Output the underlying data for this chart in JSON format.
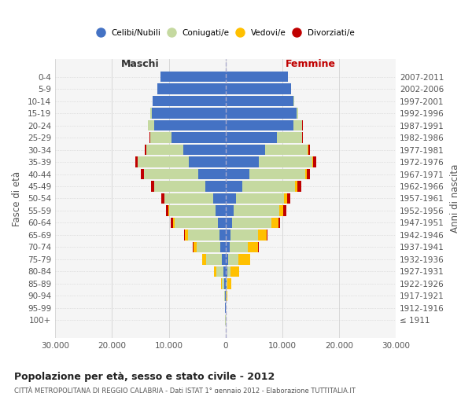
{
  "age_groups": [
    "100+",
    "95-99",
    "90-94",
    "85-89",
    "80-84",
    "75-79",
    "70-74",
    "65-69",
    "60-64",
    "55-59",
    "50-54",
    "45-49",
    "40-44",
    "35-39",
    "30-34",
    "25-29",
    "20-24",
    "15-19",
    "10-14",
    "5-9",
    "0-4"
  ],
  "birth_years": [
    "≤ 1911",
    "1912-1916",
    "1917-1921",
    "1922-1926",
    "1927-1931",
    "1932-1936",
    "1937-1941",
    "1942-1946",
    "1947-1951",
    "1952-1956",
    "1957-1961",
    "1962-1966",
    "1967-1971",
    "1972-1976",
    "1977-1981",
    "1982-1986",
    "1987-1991",
    "1992-1996",
    "1997-2001",
    "2002-2006",
    "2007-2011"
  ],
  "males_celibi": [
    30,
    60,
    120,
    200,
    380,
    600,
    900,
    1100,
    1400,
    1700,
    2200,
    3500,
    4800,
    6500,
    7500,
    9500,
    12500,
    13000,
    12800,
    12000,
    11500
  ],
  "males_coniugati": [
    10,
    30,
    80,
    400,
    1200,
    2800,
    4200,
    5500,
    7500,
    8200,
    8500,
    9000,
    9500,
    9000,
    6500,
    3800,
    1200,
    200,
    50,
    20,
    10
  ],
  "males_vedovi": [
    5,
    8,
    20,
    150,
    500,
    700,
    600,
    500,
    400,
    200,
    100,
    80,
    50,
    30,
    15,
    5,
    5,
    5,
    0,
    0,
    0
  ],
  "males_divorziati": [
    0,
    0,
    2,
    5,
    15,
    50,
    120,
    200,
    350,
    450,
    500,
    600,
    500,
    350,
    200,
    80,
    20,
    5,
    0,
    0,
    0
  ],
  "females_celibi": [
    25,
    50,
    100,
    170,
    300,
    480,
    700,
    900,
    1100,
    1400,
    1800,
    3000,
    4200,
    5800,
    7000,
    9000,
    12000,
    12500,
    12000,
    11500,
    11000
  ],
  "females_coniugati": [
    5,
    20,
    50,
    200,
    600,
    1800,
    3200,
    4800,
    7000,
    8000,
    8500,
    9200,
    9800,
    9500,
    7500,
    4500,
    1500,
    250,
    60,
    20,
    10
  ],
  "females_vedovi": [
    10,
    30,
    120,
    600,
    1500,
    2000,
    1800,
    1500,
    1200,
    800,
    500,
    400,
    250,
    150,
    80,
    30,
    10,
    5,
    0,
    0,
    0
  ],
  "females_divorziati": [
    0,
    0,
    3,
    8,
    15,
    50,
    120,
    200,
    350,
    500,
    600,
    700,
    600,
    450,
    250,
    100,
    25,
    5,
    0,
    0,
    0
  ],
  "colors": {
    "celibi": "#4472C4",
    "coniugati": "#c5d9a0",
    "vedovi": "#ffc000",
    "divorziati": "#c00000"
  },
  "legend_labels": [
    "Celibi/Nubili",
    "Coniugati/e",
    "Vedovi/e",
    "Divorziati/e"
  ],
  "title": "Popolazione per età, sesso e stato civile - 2012",
  "subtitle": "CITTÀ METROPOLITANA DI REGGIO CALABRIA - Dati ISTAT 1° gennaio 2012 - Elaborazione TUTTITALIA.IT",
  "ylabel": "Fasce di età",
  "ylabel_right": "Anni di nascita",
  "xlabel_left": "Maschi",
  "xlabel_right": "Femmine",
  "xlim": 30000,
  "xticks": [
    -30000,
    -20000,
    -10000,
    0,
    10000,
    20000,
    30000
  ],
  "xticklabels": [
    "30.000",
    "20.000",
    "10.000",
    "0",
    "10.000",
    "20.000",
    "30.000"
  ],
  "background_color": "#ffffff",
  "grid_color": "#cccccc"
}
